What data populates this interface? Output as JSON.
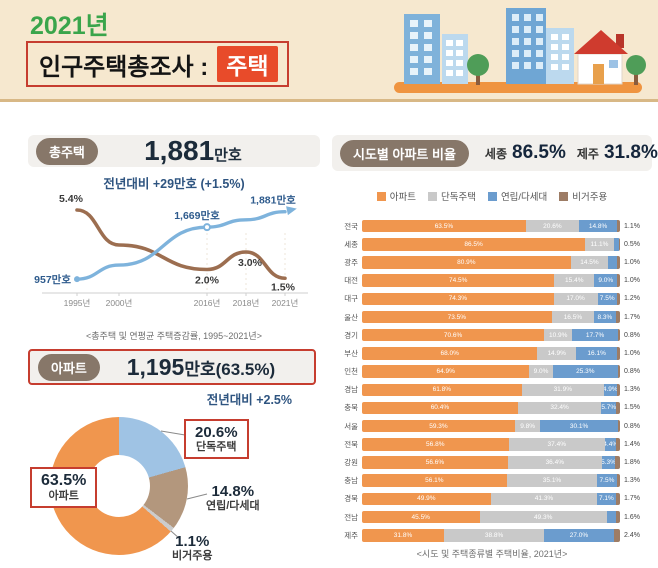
{
  "header": {
    "year": "2021년",
    "title": "인구주택총조사 :",
    "highlight": "주택"
  },
  "total_housing": {
    "badge": "총주택",
    "value_main": "1,881",
    "value_unit": "만호",
    "change": "전년대비 +29만호 (+1.5%)"
  },
  "apartment": {
    "badge": "아파트",
    "value_main": "1,195",
    "value_rest": "만호(63.5%)",
    "change": "전년대비 +2.5%"
  },
  "sido": {
    "badge": "시도별 아파트 비율",
    "headline": [
      {
        "label": "세종",
        "value": "86.5%"
      },
      {
        "label": "제주",
        "value": "31.8%"
      }
    ]
  },
  "chart_data": [
    {
      "id": "total-housing-trend",
      "type": "line",
      "x": [
        "1995년",
        "2000년",
        "2016년",
        "2018년",
        "2021년"
      ],
      "series": [
        {
          "name": "연평균 주택증감률(%)",
          "color": "#9c6e50",
          "values": [
            5.4,
            3.4,
            2.0,
            3.0,
            1.5
          ],
          "point_labels": [
            "5.4%",
            "",
            "2.0%",
            "3.0%",
            "1.5%"
          ]
        },
        {
          "name": "총주택(만호)",
          "color": "#7eb3dc",
          "values": [
            957,
            1150,
            1669,
            1770,
            1881
          ],
          "point_labels": [
            "957만호",
            "",
            "1,669만호",
            "",
            "1,881만호"
          ]
        }
      ],
      "caption": "<총주택 및 연평균 주택증감률, 1995~2021년>"
    },
    {
      "id": "housing-type-share",
      "type": "pie",
      "donut": true,
      "slices": [
        {
          "label": "단독주택",
          "value": 20.6,
          "pct": "20.6%",
          "color": "#9fc3e4"
        },
        {
          "label": "연립/다세대",
          "value": 14.8,
          "pct": "14.8%",
          "color": "#b3977d"
        },
        {
          "label": "비거주용",
          "value": 1.1,
          "pct": "1.1%",
          "color": "#cccccc"
        },
        {
          "label": "아파트",
          "value": 63.5,
          "pct": "63.5%",
          "color": "#f0964e"
        }
      ]
    },
    {
      "id": "sido-apartment-ratio",
      "type": "bar",
      "stacked": true,
      "orientation": "horizontal",
      "legend": [
        "아파트",
        "단독주택",
        "연립/다세대",
        "비거주용"
      ],
      "colors": [
        "#f0964e",
        "#c9c9c9",
        "#6b9cce",
        "#9d7c65"
      ],
      "categories": [
        "전국",
        "세종",
        "광주",
        "대전",
        "대구",
        "울산",
        "경기",
        "부산",
        "인천",
        "경남",
        "충북",
        "서울",
        "전북",
        "강원",
        "충남",
        "경북",
        "전남",
        "제주"
      ],
      "rows": [
        [
          63.5,
          20.6,
          14.8,
          1.1
        ],
        [
          86.5,
          11.1,
          1.9,
          0.5
        ],
        [
          80.9,
          14.5,
          3.6,
          1.0
        ],
        [
          74.5,
          15.4,
          9.0,
          1.0
        ],
        [
          74.3,
          17.0,
          7.5,
          1.2
        ],
        [
          73.5,
          16.5,
          8.3,
          1.7
        ],
        [
          70.6,
          10.9,
          17.7,
          0.8
        ],
        [
          68.0,
          14.9,
          16.1,
          1.0
        ],
        [
          64.9,
          9.0,
          25.3,
          0.8
        ],
        [
          61.8,
          31.9,
          4.9,
          1.3
        ],
        [
          60.4,
          32.4,
          5.7,
          1.5
        ],
        [
          59.3,
          9.8,
          30.1,
          0.8
        ],
        [
          56.8,
          37.4,
          4.4,
          1.4
        ],
        [
          56.6,
          36.4,
          5.3,
          1.8
        ],
        [
          56.1,
          35.1,
          7.5,
          1.3
        ],
        [
          49.9,
          41.3,
          7.1,
          1.7
        ],
        [
          45.5,
          49.3,
          3.5,
          1.6
        ],
        [
          31.8,
          38.8,
          27.0,
          2.4
        ]
      ],
      "caption": "<시도 및 주택종류별 주택비율, 2021년>"
    }
  ]
}
